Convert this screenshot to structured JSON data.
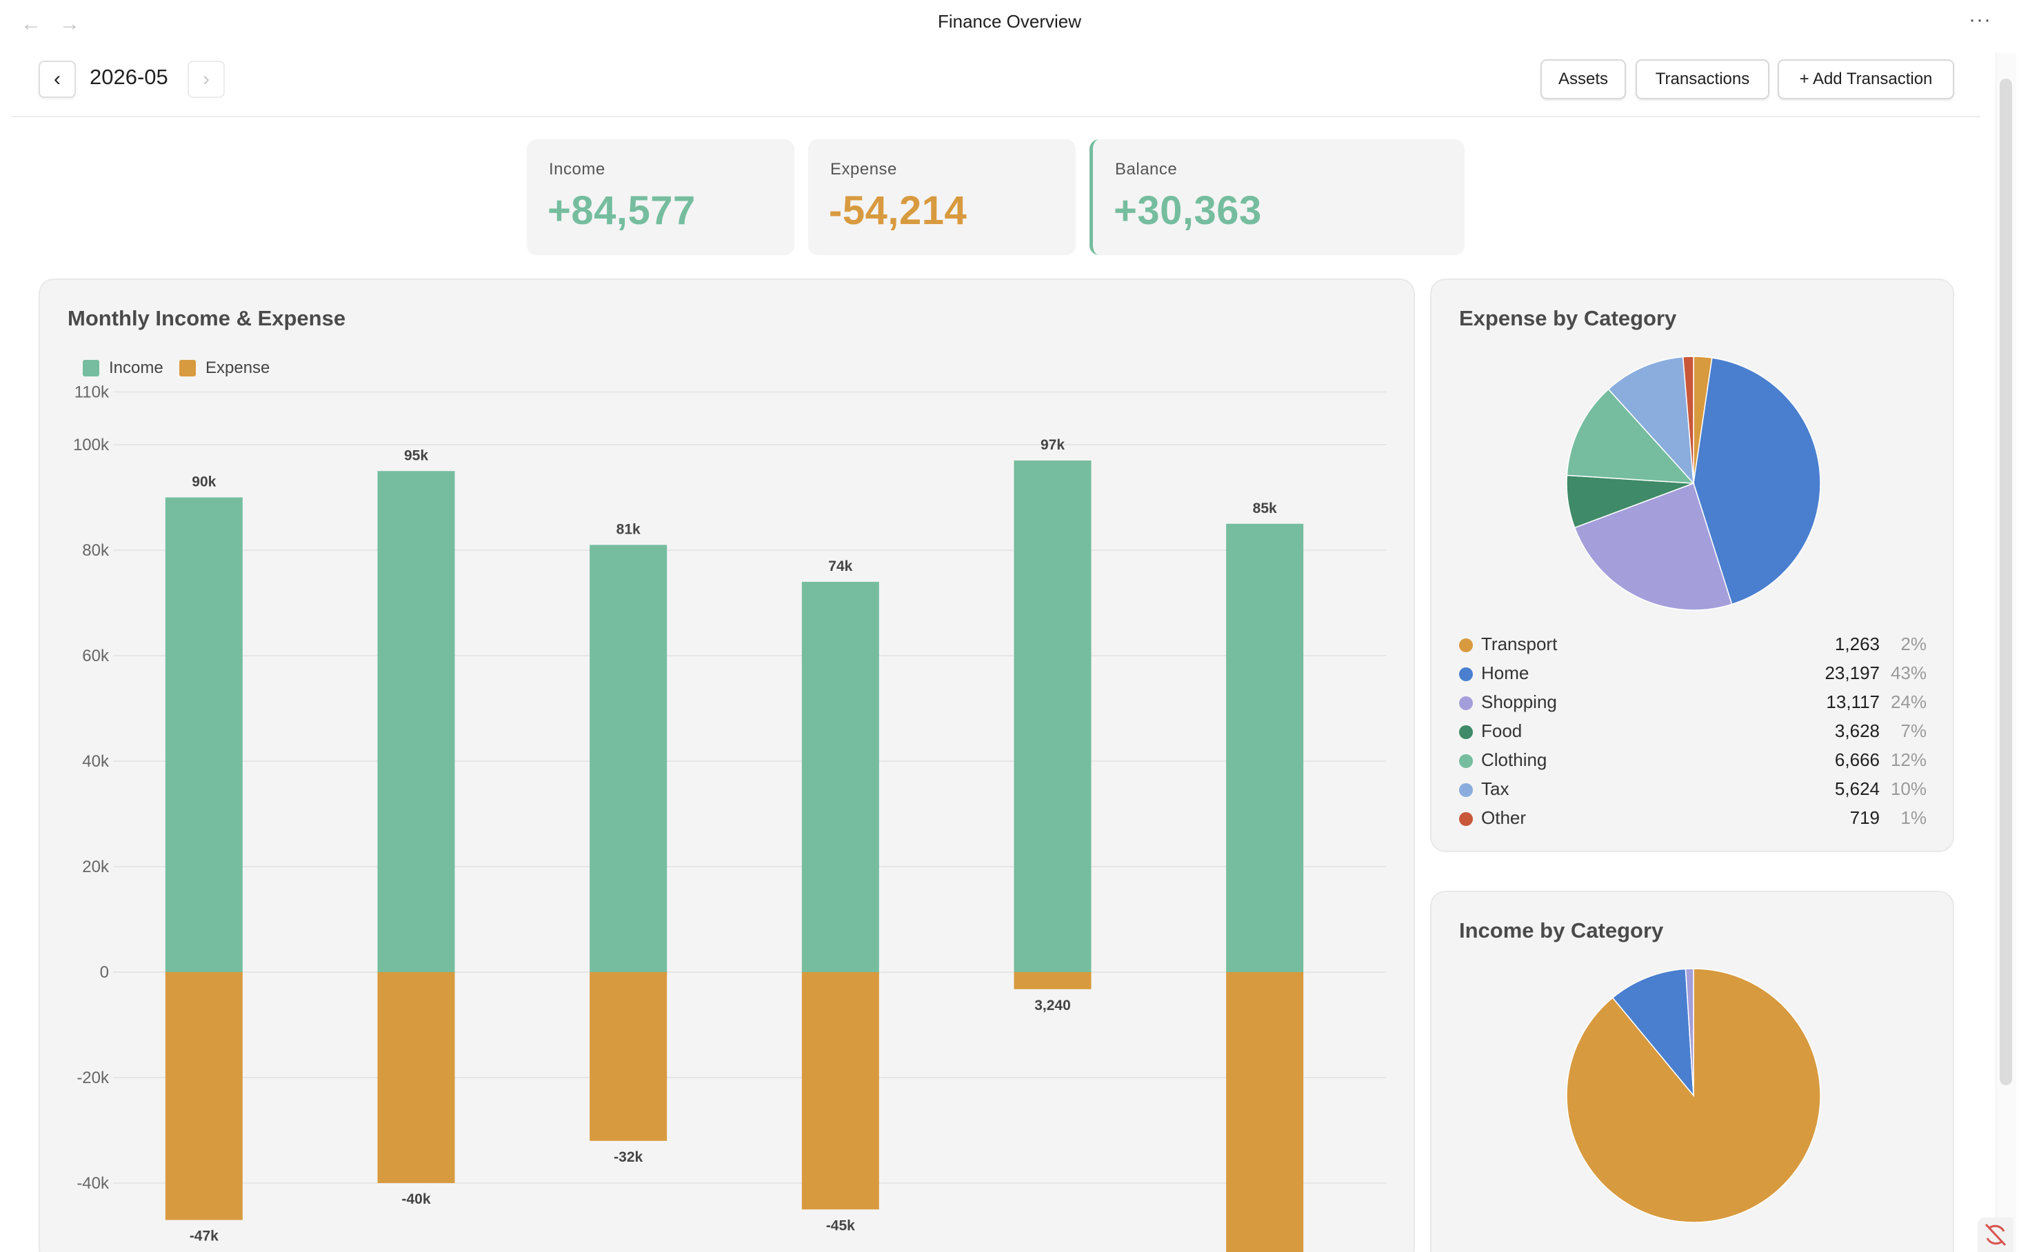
{
  "window": {
    "title": "Finance Overview",
    "back_icon": "←",
    "forward_icon": "→",
    "more_icon": "···"
  },
  "toolbar": {
    "prev_label": "‹",
    "next_label": "›",
    "period": "2026-05",
    "assets_label": "Assets",
    "transactions_label": "Transactions",
    "add_transaction_label": "+ Add Transaction"
  },
  "summary": {
    "income": {
      "label": "Income",
      "value": "+84,577"
    },
    "expense": {
      "label": "Expense",
      "value": "-54,214"
    },
    "balance": {
      "label": "Balance",
      "value": "+30,363"
    }
  },
  "colors": {
    "income": "#75bd9e",
    "expense": "#d89a3f",
    "grid": "#e2e2e2",
    "axis_text": "#666666"
  },
  "monthly": {
    "title": "Monthly Income & Expense",
    "legend": [
      "Income",
      "Expense"
    ]
  },
  "chart_data": [
    {
      "type": "bar",
      "title": "Monthly Income & Expense",
      "legend": "top-left",
      "grid": true,
      "ylim": [
        -55000,
        110000
      ],
      "yticks": [
        "110k",
        "100k",
        "80k",
        "60k",
        "40k",
        "20k",
        "0",
        "-20k",
        "-40k"
      ],
      "ytick_values": [
        110000,
        100000,
        80000,
        60000,
        40000,
        20000,
        0,
        -20000,
        -40000
      ],
      "categories": [
        "",
        "",
        "",
        "",
        "",
        ""
      ],
      "series": [
        {
          "name": "Income",
          "values": [
            90000,
            95000,
            81000,
            74000,
            97000,
            85000
          ],
          "labels": [
            "90k",
            "95k",
            "81k",
            "74k",
            "97k",
            "85k"
          ]
        },
        {
          "name": "Expense",
          "values": [
            -47000,
            -40000,
            -32000,
            -45000,
            -3240,
            -54214
          ],
          "labels": [
            "-47k",
            "-40k",
            "-32k",
            "-45k",
            "3,240",
            ""
          ]
        }
      ]
    },
    {
      "type": "pie",
      "title": "Expense by Category",
      "legend": "bottom",
      "slices": [
        {
          "name": "Transport",
          "value": 1263,
          "amount": "1,263",
          "pct": "2%",
          "color": "#d89a3f"
        },
        {
          "name": "Home",
          "value": 23197,
          "amount": "23,197",
          "pct": "43%",
          "color": "#4a7fcf"
        },
        {
          "name": "Shopping",
          "value": 13117,
          "amount": "13,117",
          "pct": "24%",
          "color": "#a49fdb"
        },
        {
          "name": "Food",
          "value": 3628,
          "amount": "3,628",
          "pct": "7%",
          "color": "#3f8a68"
        },
        {
          "name": "Clothing",
          "value": 6666,
          "amount": "6,666",
          "pct": "12%",
          "color": "#75bd9e"
        },
        {
          "name": "Tax",
          "value": 5624,
          "amount": "5,624",
          "pct": "10%",
          "color": "#8aaddd"
        },
        {
          "name": "Other",
          "value": 719,
          "amount": "719",
          "pct": "1%",
          "color": "#c9573a"
        }
      ]
    },
    {
      "type": "pie",
      "title": "Income by Category",
      "legend": "bottom",
      "slices": [
        {
          "name": "",
          "value": 89,
          "color": "#d89a3f"
        },
        {
          "name": "",
          "value": 10,
          "color": "#4a7fcf"
        },
        {
          "name": "",
          "value": 1,
          "color": "#a49fdb"
        }
      ]
    }
  ]
}
